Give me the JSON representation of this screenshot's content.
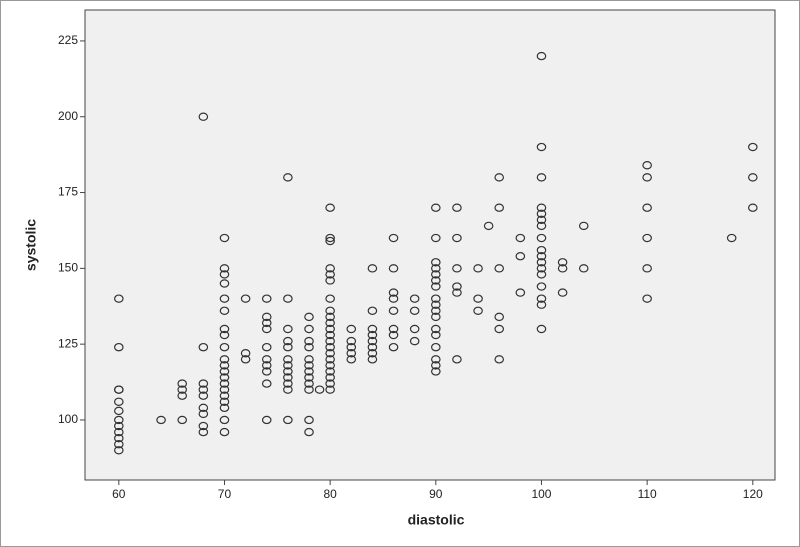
{
  "chart_data": {
    "type": "scatter",
    "x_label": "diastolic",
    "y_label": "systolic",
    "xlim": [
      56.8,
      122.1
    ],
    "ylim": [
      80.2,
      235.2
    ],
    "xticks": [
      60,
      70,
      80,
      90,
      100,
      110,
      120
    ],
    "yticks": [
      100,
      125,
      150,
      175,
      200,
      225
    ],
    "grid": false,
    "color": "#333333",
    "x": [
      60,
      60,
      60,
      60,
      60,
      60,
      60,
      60,
      60,
      60,
      60,
      60,
      64,
      66,
      66,
      66,
      66,
      68,
      68,
      68,
      68,
      68,
      68,
      68,
      68,
      68,
      70,
      70,
      70,
      70,
      70,
      70,
      70,
      70,
      70,
      70,
      70,
      70,
      70,
      70,
      70,
      70,
      70,
      70,
      70,
      70,
      72,
      72,
      72,
      74,
      74,
      74,
      74,
      74,
      74,
      74,
      74,
      74,
      74,
      76,
      76,
      76,
      76,
      76,
      76,
      76,
      76,
      76,
      76,
      76,
      76,
      78,
      78,
      78,
      78,
      78,
      78,
      78,
      78,
      78,
      78,
      78,
      78,
      79,
      80,
      80,
      80,
      80,
      80,
      80,
      80,
      80,
      80,
      80,
      80,
      80,
      80,
      80,
      80,
      80,
      80,
      80,
      80,
      80,
      80,
      82,
      82,
      82,
      82,
      82,
      84,
      84,
      84,
      84,
      84,
      84,
      84,
      84,
      86,
      86,
      86,
      86,
      86,
      86,
      86,
      86,
      88,
      88,
      88,
      88,
      90,
      90,
      90,
      90,
      90,
      90,
      90,
      90,
      90,
      90,
      90,
      90,
      90,
      90,
      90,
      90,
      90,
      92,
      92,
      92,
      92,
      92,
      92,
      94,
      94,
      94,
      95,
      96,
      96,
      96,
      96,
      96,
      96,
      98,
      98,
      98,
      100,
      100,
      100,
      100,
      100,
      100,
      100,
      100,
      100,
      100,
      100,
      100,
      100,
      100,
      100,
      100,
      100,
      102,
      102,
      102,
      104,
      104,
      110,
      110,
      110,
      110,
      110,
      110,
      118,
      120,
      120,
      120
    ],
    "values": [
      140,
      124,
      110,
      110,
      106,
      103,
      100,
      98,
      96,
      94,
      92,
      90,
      100,
      112,
      110,
      108,
      100,
      200,
      124,
      112,
      110,
      108,
      104,
      102,
      98,
      96,
      160,
      150,
      148,
      145,
      140,
      136,
      130,
      128,
      124,
      120,
      118,
      116,
      114,
      112,
      110,
      108,
      106,
      104,
      100,
      96,
      140,
      122,
      120,
      140,
      134,
      132,
      130,
      124,
      120,
      118,
      116,
      112,
      100,
      180,
      140,
      130,
      126,
      124,
      120,
      118,
      116,
      114,
      112,
      110,
      100,
      134,
      130,
      126,
      124,
      120,
      118,
      116,
      114,
      112,
      110,
      100,
      96,
      110,
      170,
      160,
      159,
      150,
      148,
      146,
      140,
      136,
      134,
      132,
      130,
      128,
      126,
      124,
      122,
      120,
      118,
      116,
      114,
      112,
      110,
      130,
      126,
      124,
      122,
      120,
      150,
      136,
      130,
      128,
      126,
      124,
      122,
      120,
      160,
      150,
      142,
      140,
      136,
      130,
      128,
      124,
      140,
      136,
      130,
      126,
      170,
      160,
      152,
      150,
      148,
      146,
      144,
      140,
      138,
      136,
      134,
      130,
      128,
      124,
      120,
      118,
      116,
      170,
      160,
      150,
      144,
      142,
      120,
      150,
      140,
      136,
      164,
      180,
      170,
      150,
      134,
      130,
      120,
      160,
      154,
      142,
      220,
      190,
      180,
      170,
      168,
      166,
      164,
      160,
      156,
      154,
      152,
      150,
      148,
      144,
      140,
      138,
      130,
      152,
      150,
      142,
      164,
      150,
      184,
      180,
      170,
      160,
      150,
      140,
      160,
      190,
      180,
      170
    ]
  }
}
